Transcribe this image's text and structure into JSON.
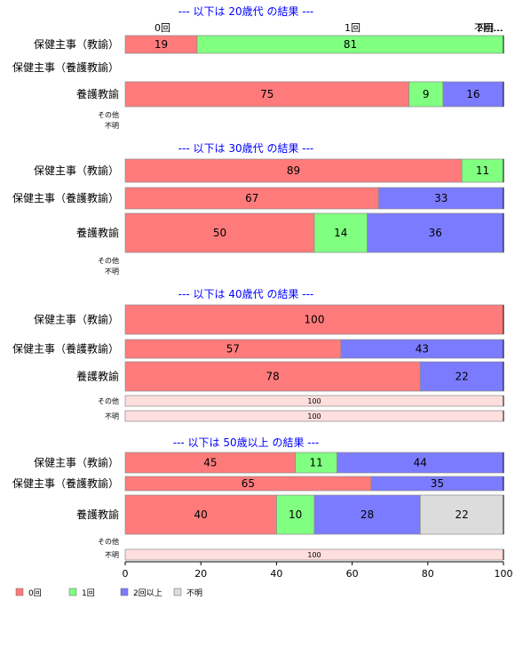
{
  "chart_data": {
    "type": "bar",
    "stacked": true,
    "orientation": "horizontal",
    "xlim": [
      0,
      100
    ],
    "x_ticks": [
      "0",
      "20",
      "40",
      "60",
      "80",
      "100"
    ],
    "top_labels": [
      "0回",
      "1回",
      "2回…",
      "不明…"
    ],
    "legend_position": "bottom-left",
    "legend": [
      {
        "key": "zero",
        "label": "0回",
        "color": "#ff7b7b"
      },
      {
        "key": "one",
        "label": "1回",
        "color": "#80ff80"
      },
      {
        "key": "two",
        "label": "2回以上",
        "color": "#7b7bff"
      },
      {
        "key": "unknown",
        "label": "不明",
        "color": "#dcdcdc"
      }
    ],
    "panels": [
      {
        "title": "--- 以下は 20歳代 の結果 ---",
        "rows": [
          {
            "label": "保健主事（教諭）",
            "size": "large",
            "values": [
              19,
              81,
              0,
              0
            ]
          },
          {
            "label": "保健主事（養護教諭）",
            "size": "large",
            "values": null
          },
          {
            "label": "養護教諭",
            "size": "large",
            "values": [
              75,
              9,
              16,
              0
            ]
          },
          {
            "label": "その他",
            "size": "small",
            "values": null
          },
          {
            "label": "不明",
            "size": "small",
            "values": null
          }
        ]
      },
      {
        "title": "--- 以下は 30歳代 の結果 ---",
        "rows": [
          {
            "label": "保健主事（教諭）",
            "size": "large",
            "values": [
              89,
              11,
              0,
              0
            ]
          },
          {
            "label": "保健主事（養護教諭）",
            "size": "large",
            "values": [
              67,
              0,
              33,
              0
            ]
          },
          {
            "label": "養護教諭",
            "size": "large",
            "values": [
              50,
              14,
              36,
              0
            ]
          },
          {
            "label": "その他",
            "size": "small",
            "values": null
          },
          {
            "label": "不明",
            "size": "small",
            "values": null
          }
        ]
      },
      {
        "title": "--- 以下は 40歳代 の結果 ---",
        "rows": [
          {
            "label": "保健主事（教諭）",
            "size": "large",
            "values": [
              100,
              0,
              0,
              0
            ]
          },
          {
            "label": "保健主事（養護教諭）",
            "size": "large",
            "values": [
              57,
              0,
              43,
              0
            ]
          },
          {
            "label": "養護教諭",
            "size": "large",
            "values": [
              78,
              0,
              22,
              0
            ]
          },
          {
            "label": "その他",
            "size": "small",
            "values": [
              100,
              0,
              0,
              0
            ]
          },
          {
            "label": "不明",
            "size": "small",
            "values": [
              100,
              0,
              0,
              0
            ]
          }
        ]
      },
      {
        "title": "--- 以下は 50歳以上 の結果 ---",
        "rows": [
          {
            "label": "保健主事（教諭）",
            "size": "large",
            "values": [
              45,
              11,
              44,
              0
            ]
          },
          {
            "label": "保健主事（養護教諭）",
            "size": "large",
            "values": [
              65,
              0,
              35,
              0
            ]
          },
          {
            "label": "養護教諭",
            "size": "large",
            "values": [
              40,
              10,
              28,
              22
            ]
          },
          {
            "label": "その他",
            "size": "small",
            "values": null
          },
          {
            "label": "不明",
            "size": "small",
            "values": [
              100,
              0,
              0,
              0
            ]
          }
        ]
      }
    ]
  }
}
